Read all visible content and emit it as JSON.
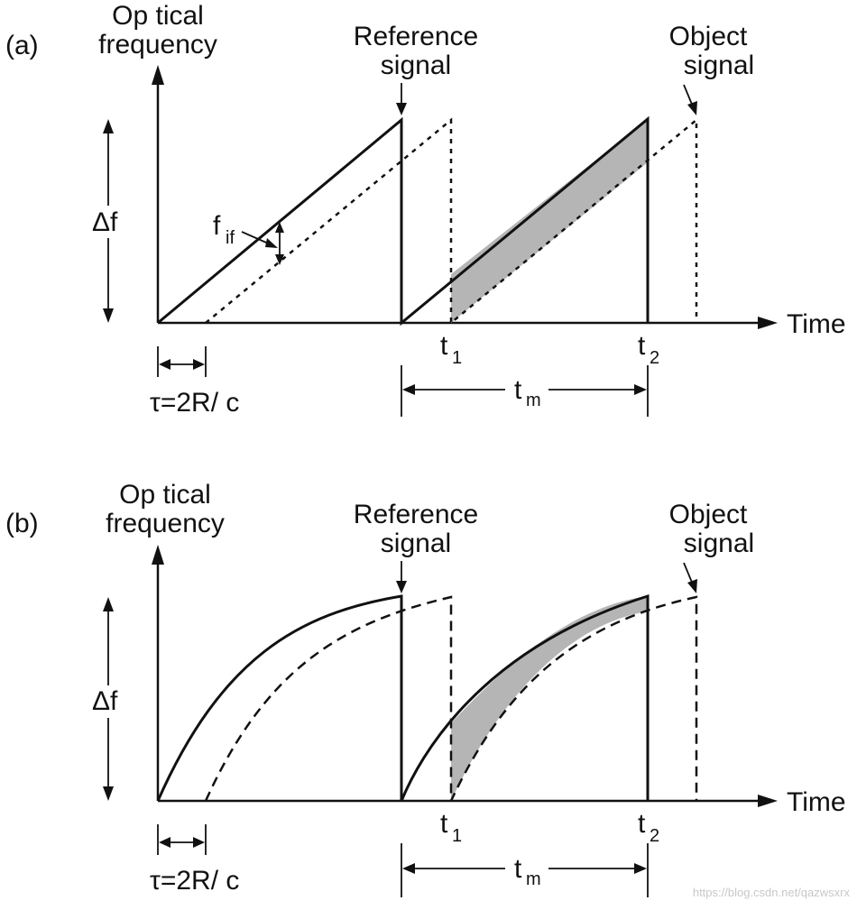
{
  "panel_a": {
    "label": "(a)",
    "ylabel_line1": "Op tical",
    "ylabel_line2": "frequency",
    "ref_line1": "Reference",
    "ref_line2": "signal",
    "obj_line1": "Object",
    "obj_line2": "signal",
    "delta_f": "Δf",
    "f_if_main": "f",
    "f_if_sub": "if",
    "xlabel": "Time",
    "t1_main": "t",
    "t1_sub": "1",
    "t2_main": "t",
    "t2_sub": "2",
    "tm_main": "t",
    "tm_sub": "m",
    "tau": "τ=2R/ c"
  },
  "panel_b": {
    "label": "(b)",
    "ylabel_line1": "Op tical",
    "ylabel_line2": "frequency",
    "ref_line1": "Reference",
    "ref_line2": "signal",
    "obj_line1": "Object",
    "obj_line2": "signal",
    "delta_f": "Δf",
    "xlabel": "Time",
    "t1_main": "t",
    "t1_sub": "1",
    "t2_main": "t",
    "t2_sub": "2",
    "tm_main": "t",
    "tm_sub": "m",
    "tau": "τ=2R/ c"
  },
  "watermark": "https://blog.csdn.net/qazwsxrx"
}
